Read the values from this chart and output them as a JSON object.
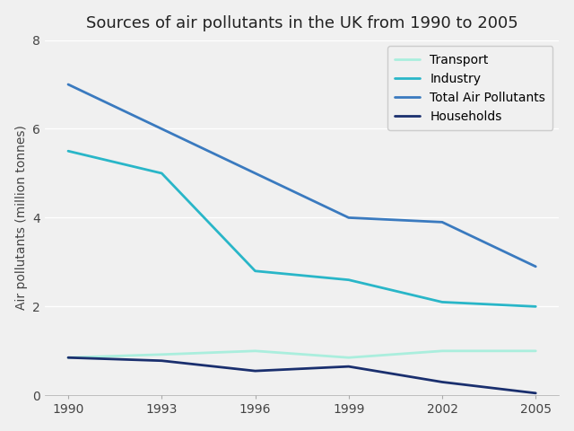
{
  "title": "Sources of air pollutants in the UK from 1990 to 2005",
  "ylabel": "Air pollutants (million tonnes)",
  "years": [
    1990,
    1993,
    1996,
    1999,
    2002,
    2005
  ],
  "series": [
    {
      "label": "Transport",
      "color": "#aaeedd",
      "values": [
        0.85,
        0.92,
        1.0,
        0.85,
        1.0,
        1.0
      ]
    },
    {
      "label": "Industry",
      "color": "#29b6c8",
      "values": [
        5.5,
        5.0,
        2.8,
        2.6,
        2.1,
        2.0
      ]
    },
    {
      "label": "Total Air Pollutants",
      "color": "#3a7abf",
      "values": [
        7.0,
        6.0,
        5.0,
        4.0,
        3.9,
        2.9
      ]
    },
    {
      "label": "Households",
      "color": "#1a2f6e",
      "values": [
        0.85,
        0.78,
        0.55,
        0.65,
        0.3,
        0.05
      ]
    }
  ],
  "ylim": [
    0,
    8
  ],
  "yticks": [
    0,
    2,
    4,
    6,
    8
  ],
  "xticks": [
    1990,
    1993,
    1996,
    1999,
    2002,
    2005
  ],
  "bg_color": "#f0f0f0",
  "plot_bg_color": "#f0f0f0",
  "grid_color": "#ffffff",
  "title_fontsize": 13,
  "label_fontsize": 10,
  "tick_fontsize": 10,
  "legend_fontsize": 10,
  "line_width": 2.0
}
